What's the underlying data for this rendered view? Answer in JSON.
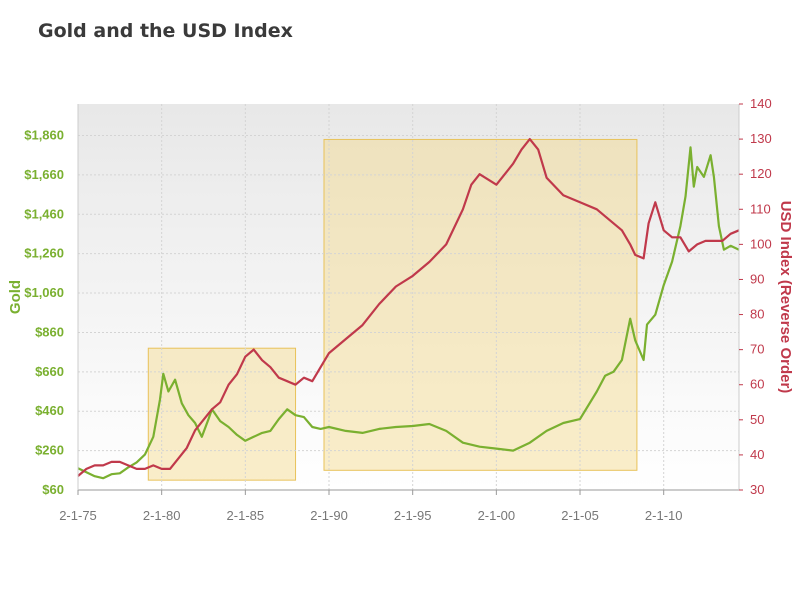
{
  "chart_data": {
    "type": "line",
    "title": "Gold and the USD Index",
    "xlabel": "",
    "x_ticks": [
      "2-1-75",
      "2-1-80",
      "2-1-85",
      "2-1-90",
      "2-1-95",
      "2-1-00",
      "2-1-05",
      "2-1-10"
    ],
    "x_range": [
      1975.0,
      2014.5
    ],
    "y_left": {
      "label": "Gold",
      "ticks": [
        "$60",
        "$260",
        "$460",
        "$660",
        "$860",
        "$1,060",
        "$1,260",
        "$1,460",
        "$1,660",
        "$1,860"
      ],
      "ylim": [
        60,
        2020
      ]
    },
    "y_right": {
      "label": "USD Index (Reverse Order)",
      "ticks": [
        "30",
        "40",
        "50",
        "60",
        "70",
        "80",
        "90",
        "100",
        "110",
        "120",
        "130",
        "140"
      ],
      "ylim": [
        30,
        140
      ],
      "reversed_values": true
    },
    "highlight_periods": [
      [
        1979.2,
        1988.0
      ],
      [
        1989.7,
        2008.4
      ]
    ],
    "series": [
      {
        "name": "Gold",
        "axis": "left",
        "color": "#7ab030",
        "x": [
          1975.0,
          1975.5,
          1976.0,
          1976.5,
          1977.0,
          1977.5,
          1978.0,
          1978.5,
          1979.0,
          1979.5,
          1979.9,
          1980.1,
          1980.4,
          1980.8,
          1981.2,
          1981.6,
          1982.0,
          1982.4,
          1982.8,
          1983.0,
          1983.5,
          1984.0,
          1984.5,
          1985.0,
          1985.5,
          1986.0,
          1986.5,
          1987.0,
          1987.5,
          1988.0,
          1988.5,
          1989.0,
          1989.5,
          1990.0,
          1991.0,
          1992.0,
          1993.0,
          1994.0,
          1995.0,
          1996.0,
          1997.0,
          1998.0,
          1999.0,
          2000.0,
          2001.0,
          2002.0,
          2003.0,
          2004.0,
          2005.0,
          2006.0,
          2006.5,
          2007.0,
          2007.5,
          2008.0,
          2008.3,
          2008.8,
          2009.0,
          2009.5,
          2010.0,
          2010.5,
          2011.0,
          2011.3,
          2011.6,
          2011.8,
          2012.0,
          2012.4,
          2012.8,
          2013.0,
          2013.3,
          2013.6,
          2014.0,
          2014.5
        ],
        "values": [
          170,
          150,
          130,
          120,
          140,
          145,
          175,
          200,
          240,
          330,
          520,
          650,
          560,
          620,
          500,
          440,
          400,
          330,
          420,
          470,
          410,
          380,
          340,
          310,
          330,
          350,
          360,
          420,
          470,
          440,
          430,
          380,
          370,
          380,
          360,
          350,
          370,
          380,
          385,
          395,
          360,
          300,
          280,
          270,
          260,
          300,
          360,
          400,
          420,
          560,
          640,
          660,
          720,
          930,
          820,
          720,
          900,
          950,
          1100,
          1220,
          1400,
          1550,
          1800,
          1600,
          1700,
          1650,
          1760,
          1650,
          1400,
          1280,
          1300,
          1280
        ]
      },
      {
        "name": "USD Index",
        "axis": "right",
        "color": "#c0394b",
        "x": [
          1975.0,
          1975.5,
          1976.0,
          1976.5,
          1977.0,
          1977.5,
          1978.0,
          1978.5,
          1979.0,
          1979.5,
          1980.0,
          1980.5,
          1981.0,
          1981.5,
          1982.0,
          1982.5,
          1983.0,
          1983.5,
          1984.0,
          1984.5,
          1985.0,
          1985.5,
          1986.0,
          1986.5,
          1987.0,
          1987.5,
          1988.0,
          1988.5,
          1989.0,
          1989.5,
          1990.0,
          1991.0,
          1992.0,
          1993.0,
          1994.0,
          1995.0,
          1996.0,
          1997.0,
          1998.0,
          1998.5,
          1999.0,
          2000.0,
          2001.0,
          2001.5,
          2002.0,
          2002.5,
          2003.0,
          2004.0,
          2005.0,
          2006.0,
          2007.0,
          2007.5,
          2008.0,
          2008.3,
          2008.8,
          2009.1,
          2009.5,
          2010.0,
          2010.5,
          2011.0,
          2011.5,
          2012.0,
          2012.5,
          2013.0,
          2013.5,
          2014.0,
          2014.5
        ],
        "values": [
          34,
          36,
          37,
          37,
          38,
          38,
          37,
          36,
          36,
          37,
          36,
          36,
          39,
          42,
          47,
          50,
          53,
          55,
          60,
          63,
          68,
          70,
          67,
          65,
          62,
          61,
          60,
          62,
          61,
          65,
          69,
          73,
          77,
          83,
          88,
          91,
          95,
          100,
          110,
          117,
          120,
          117,
          123,
          127,
          130,
          127,
          119,
          114,
          112,
          110,
          106,
          104,
          100,
          97,
          96,
          106,
          112,
          104,
          102,
          102,
          98,
          100,
          101,
          101,
          101,
          103,
          104
        ]
      }
    ]
  }
}
